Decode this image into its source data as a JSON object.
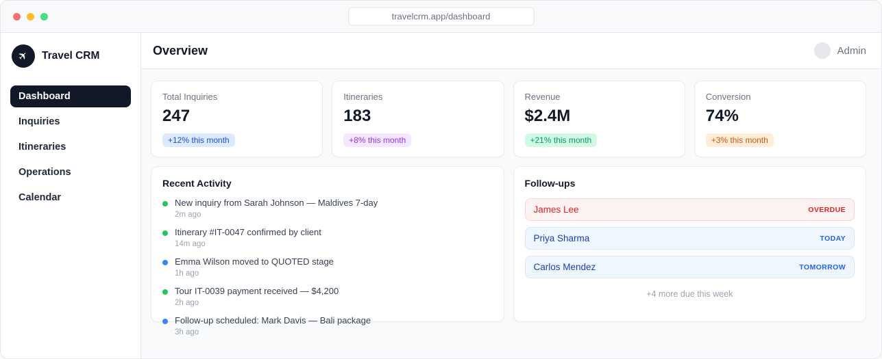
{
  "browser": {
    "url": "travelcrm.app/dashboard",
    "traffic_lights": [
      "close",
      "minimize",
      "zoom"
    ]
  },
  "sidebar": {
    "brand": "Travel CRM",
    "brand_icon": "plane-icon",
    "items": [
      {
        "label": "Dashboard",
        "active": true
      },
      {
        "label": "Inquiries",
        "active": false
      },
      {
        "label": "Itineraries",
        "active": false
      },
      {
        "label": "Operations",
        "active": false
      },
      {
        "label": "Calendar",
        "active": false
      }
    ]
  },
  "header": {
    "title": "Overview",
    "user": "Admin"
  },
  "stats": {
    "cards": [
      {
        "label": "Total Inquiries",
        "value": "247",
        "badge": "+12% this month",
        "tone": "blue"
      },
      {
        "label": "Itineraries",
        "value": "183",
        "badge": "+8% this month",
        "tone": "purple"
      },
      {
        "label": "Revenue",
        "value": "$2.4M",
        "badge": "+21% this month",
        "tone": "green"
      },
      {
        "label": "Conversion",
        "value": "74%",
        "badge": "+3% this month",
        "tone": "orange"
      }
    ]
  },
  "activity": {
    "title": "Recent Activity",
    "items": [
      {
        "text": "New inquiry from Sarah Johnson — Maldives 7-day",
        "time": "2m ago",
        "dot": "green"
      },
      {
        "text": "Itinerary #IT-0047 confirmed by client",
        "time": "14m ago",
        "dot": "green"
      },
      {
        "text": "Emma Wilson moved to QUOTED stage",
        "time": "1h ago",
        "dot": "blue"
      },
      {
        "text": "Tour IT-0039 payment received — $4,200",
        "time": "2h ago",
        "dot": "green"
      },
      {
        "text": "Follow-up scheduled: Mark Davis — Bali package",
        "time": "3h ago",
        "dot": "blue"
      }
    ]
  },
  "followups": {
    "title": "Follow-ups",
    "items": [
      {
        "name": "James Lee",
        "due": "OVERDUE",
        "tone": "overdue"
      },
      {
        "name": "Priya Sharma",
        "due": "TODAY",
        "tone": "today"
      },
      {
        "name": "Carlos Mendez",
        "due": "TOMORROW",
        "tone": "today"
      }
    ],
    "footer": "+4 more due this week"
  },
  "colors": {
    "sidebar_active_bg": "#111827",
    "logo_bg": "#111827",
    "content_bg": "#f8fafc",
    "badge_blue_bg": "#dbeafe",
    "badge_blue_text": "#1d4ed8",
    "badge_purple_bg": "#f3e8ff",
    "badge_purple_text": "#9333ea",
    "badge_green_bg": "#d1fae5",
    "badge_green_text": "#059669",
    "badge_orange_bg": "#ffedd5",
    "badge_orange_text": "#c2571a",
    "dot_green": "#22c55e",
    "dot_blue": "#3b82f6",
    "overdue_bg": "#fdf2f2",
    "overdue_text": "#dc2626",
    "today_bg": "#eff6ff",
    "today_text": "#2563eb",
    "traffic_red": "#f87171",
    "traffic_yellow": "#fbbf24",
    "traffic_green": "#4ade80"
  }
}
